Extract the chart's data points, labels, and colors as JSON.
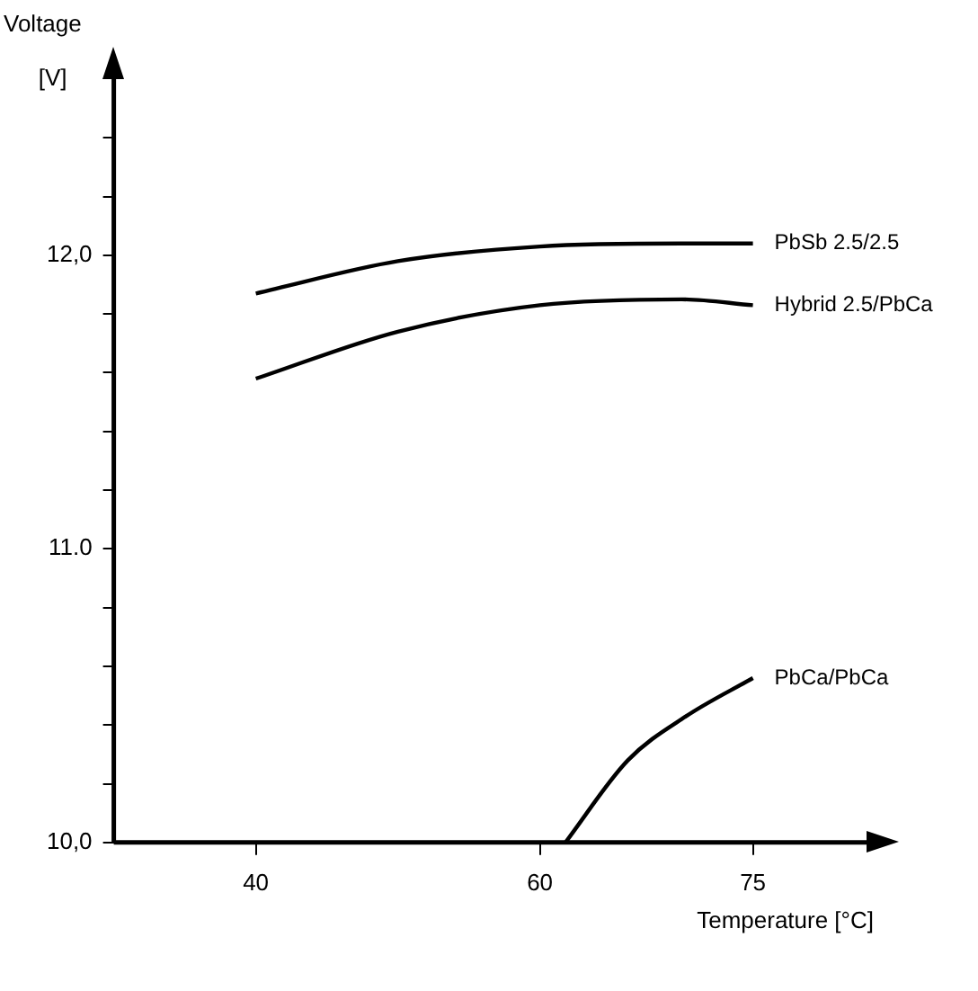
{
  "chart_data": {
    "type": "line",
    "xlabel": "Temperature [°C]",
    "ylabel": "Voltage [V]",
    "xlim": [
      30,
      83
    ],
    "xticks": [
      40,
      60,
      75
    ],
    "ylim": [
      10,
      12.6
    ],
    "yticks": [
      {
        "value": 10,
        "label": "10,0"
      },
      {
        "value": 10.2,
        "label": null
      },
      {
        "value": 10.4,
        "label": null
      },
      {
        "value": 10.6,
        "label": null
      },
      {
        "value": 10.8,
        "label": null
      },
      {
        "value": 11,
        "label": "11.0"
      },
      {
        "value": 11.2,
        "label": null
      },
      {
        "value": 11.4,
        "label": null
      },
      {
        "value": 11.6,
        "label": null
      },
      {
        "value": 11.8,
        "label": null
      },
      {
        "value": 12,
        "label": "12,0"
      },
      {
        "value": 12.2,
        "label": null
      },
      {
        "value": 12.4,
        "label": null
      }
    ],
    "grid": false,
    "legend": false,
    "marker": "none",
    "line_style": "solid",
    "series": [
      {
        "name": "PbSb 2.5/2.5",
        "color": "#000000",
        "x": [
          40,
          50,
          60,
          70,
          75
        ],
        "values": [
          11.87,
          11.98,
          12.03,
          12.04,
          12.04
        ]
      },
      {
        "name": "Hybrid 2.5/PbCa",
        "color": "#000000",
        "x": [
          40,
          50,
          60,
          70,
          75
        ],
        "values": [
          11.58,
          11.74,
          11.83,
          11.85,
          11.83
        ]
      },
      {
        "name": "PbCa/PbCa",
        "color": "#000000",
        "x": [
          61.8,
          66.2,
          70.3,
          75
        ],
        "values": [
          10,
          10.28,
          10.43,
          10.56
        ]
      }
    ]
  }
}
